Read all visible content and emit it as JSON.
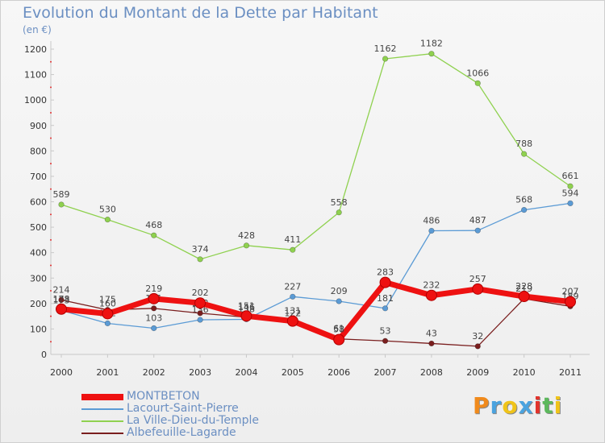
{
  "header": {
    "title": "Evolution du Montant de la Dette par Habitant",
    "unit": "(en €)"
  },
  "brand": {
    "text": "Proxiti",
    "letter_colors": [
      "#f08a1c",
      "#4aa3df",
      "#f0c419",
      "#4aa3df",
      "#e2342c",
      "#5cb85c",
      "#f0c419"
    ]
  },
  "chart_data": {
    "type": "line",
    "title": "Evolution du Montant de la Dette par Habitant",
    "subtitle": "(en €)",
    "xlabel": "",
    "ylabel": "",
    "x": [
      "2000",
      "2001",
      "2002",
      "2003",
      "2004",
      "2005",
      "2006",
      "2007",
      "2008",
      "2009",
      "2010",
      "2011"
    ],
    "ylim": [
      0,
      1200
    ],
    "yticks": [
      "0",
      "100",
      "200",
      "300",
      "400",
      "500",
      "600",
      "700",
      "800",
      "900",
      "1000",
      "1100",
      "1200"
    ],
    "grid": false,
    "legend_position": "bottom-left",
    "series": [
      {
        "name": "La Ville-Dieu-du-Temple",
        "color": "#8fd14f",
        "values": [
          589,
          530,
          468,
          374,
          428,
          411,
          558,
          1162,
          1182,
          1066,
          788,
          661
        ],
        "labels": [
          "589",
          "530",
          "468",
          "374",
          "428",
          "411",
          "558",
          "1162",
          "1182",
          "1066",
          "788",
          "661"
        ]
      },
      {
        "name": "Lacourt-Saint-Pierre",
        "color": "#5b9bd5",
        "values": [
          173,
          122,
          103,
          136,
          138,
          227,
          209,
          181,
          486,
          487,
          568,
          594
        ],
        "labels": [
          "173",
          "122",
          "103",
          "136",
          "138",
          "227",
          "209",
          "181",
          "486",
          "487",
          "568",
          "594"
        ]
      },
      {
        "name": "Albefeuille-Lagarde",
        "color": "#7a1e1e",
        "values": [
          214,
          175,
          181,
          162,
          146,
          122,
          61,
          53,
          43,
          32,
          219,
          189
        ],
        "labels": [
          "214",
          "175",
          "181",
          "162",
          "146",
          "122",
          "61",
          "53",
          "43",
          "32",
          "219",
          "189"
        ]
      },
      {
        "name": "MONTBETON",
        "color": "#ee1111",
        "values": [
          178,
          160,
          219,
          202,
          151,
          131,
          58,
          283,
          232,
          257,
          228,
          207
        ],
        "labels": [
          "178",
          "160",
          "219",
          "202",
          "151",
          "131",
          "58",
          "283",
          "232",
          "257",
          "228",
          "207"
        ]
      }
    ],
    "legend_order": [
      "MONTBETON",
      "Lacourt-Saint-Pierre",
      "La Ville-Dieu-du-Temple",
      "Albefeuille-Lagarde"
    ]
  }
}
